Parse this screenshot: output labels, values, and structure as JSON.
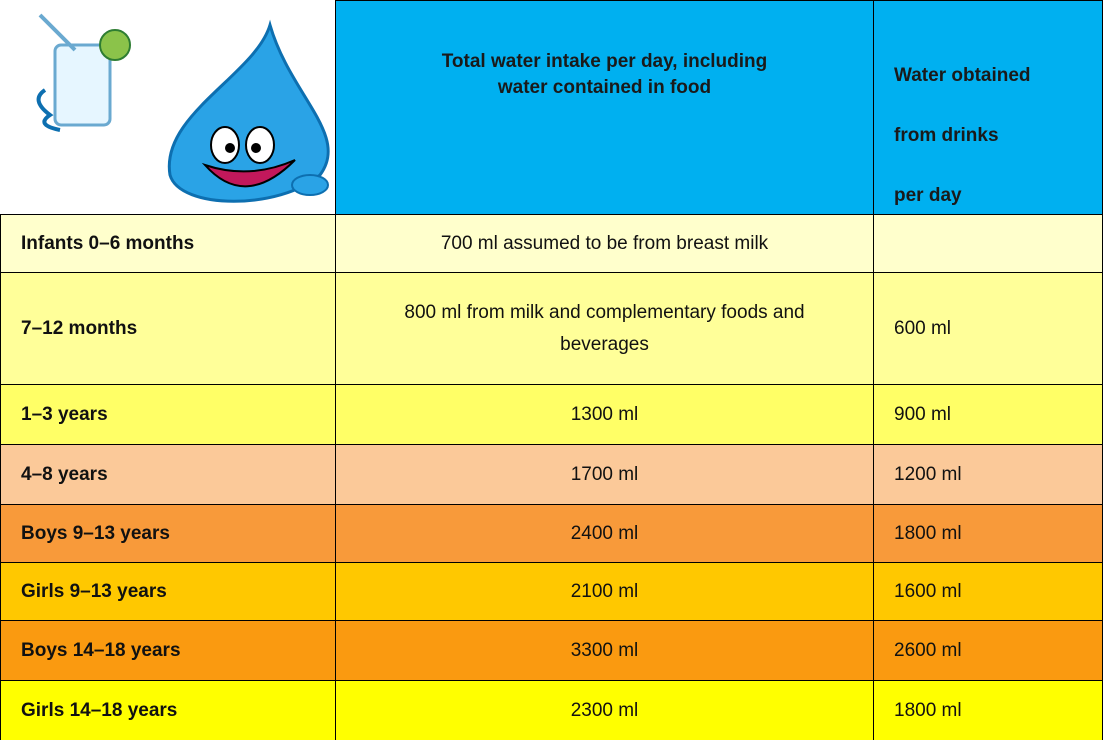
{
  "table": {
    "header": {
      "total": [
        "Total water intake per day, including",
        "water contained in food"
      ],
      "drinks": [
        "Water obtained",
        "from drinks",
        "per day"
      ]
    },
    "rows": [
      {
        "cells": [
          "Infants 0–6 months",
          "700 ml assumed to be from breast milk",
          null
        ],
        "color": "#ffffcc"
      },
      {
        "cells": [
          "7–12 months",
          "800 ml from milk and complementary foods and beverages",
          "600 ml"
        ],
        "color": "#ffff99"
      },
      {
        "cells": [
          "1–3 years",
          "1300 ml",
          "900 ml"
        ],
        "color": "#ffff66"
      },
      {
        "cells": [
          "4–8 years",
          "1700 ml",
          "1200 ml"
        ],
        "color": "#fbc999"
      },
      {
        "cells": [
          "Boys 9–13 years",
          "2400 ml",
          "1800 ml"
        ],
        "color": "#f89a3a"
      },
      {
        "cells": [
          "Girls 9–13 years",
          "2100 ml",
          "1600 ml"
        ],
        "color": "#ffc800"
      },
      {
        "cells": [
          "Boys 14–18 years",
          "3300 ml",
          "2600 ml"
        ],
        "color": "#fa9a10"
      },
      {
        "cells": [
          "Girls 14–18 years",
          "2300 ml",
          "1800 ml"
        ],
        "color": "#ffff00"
      }
    ],
    "header_color": "#00b0f0"
  }
}
